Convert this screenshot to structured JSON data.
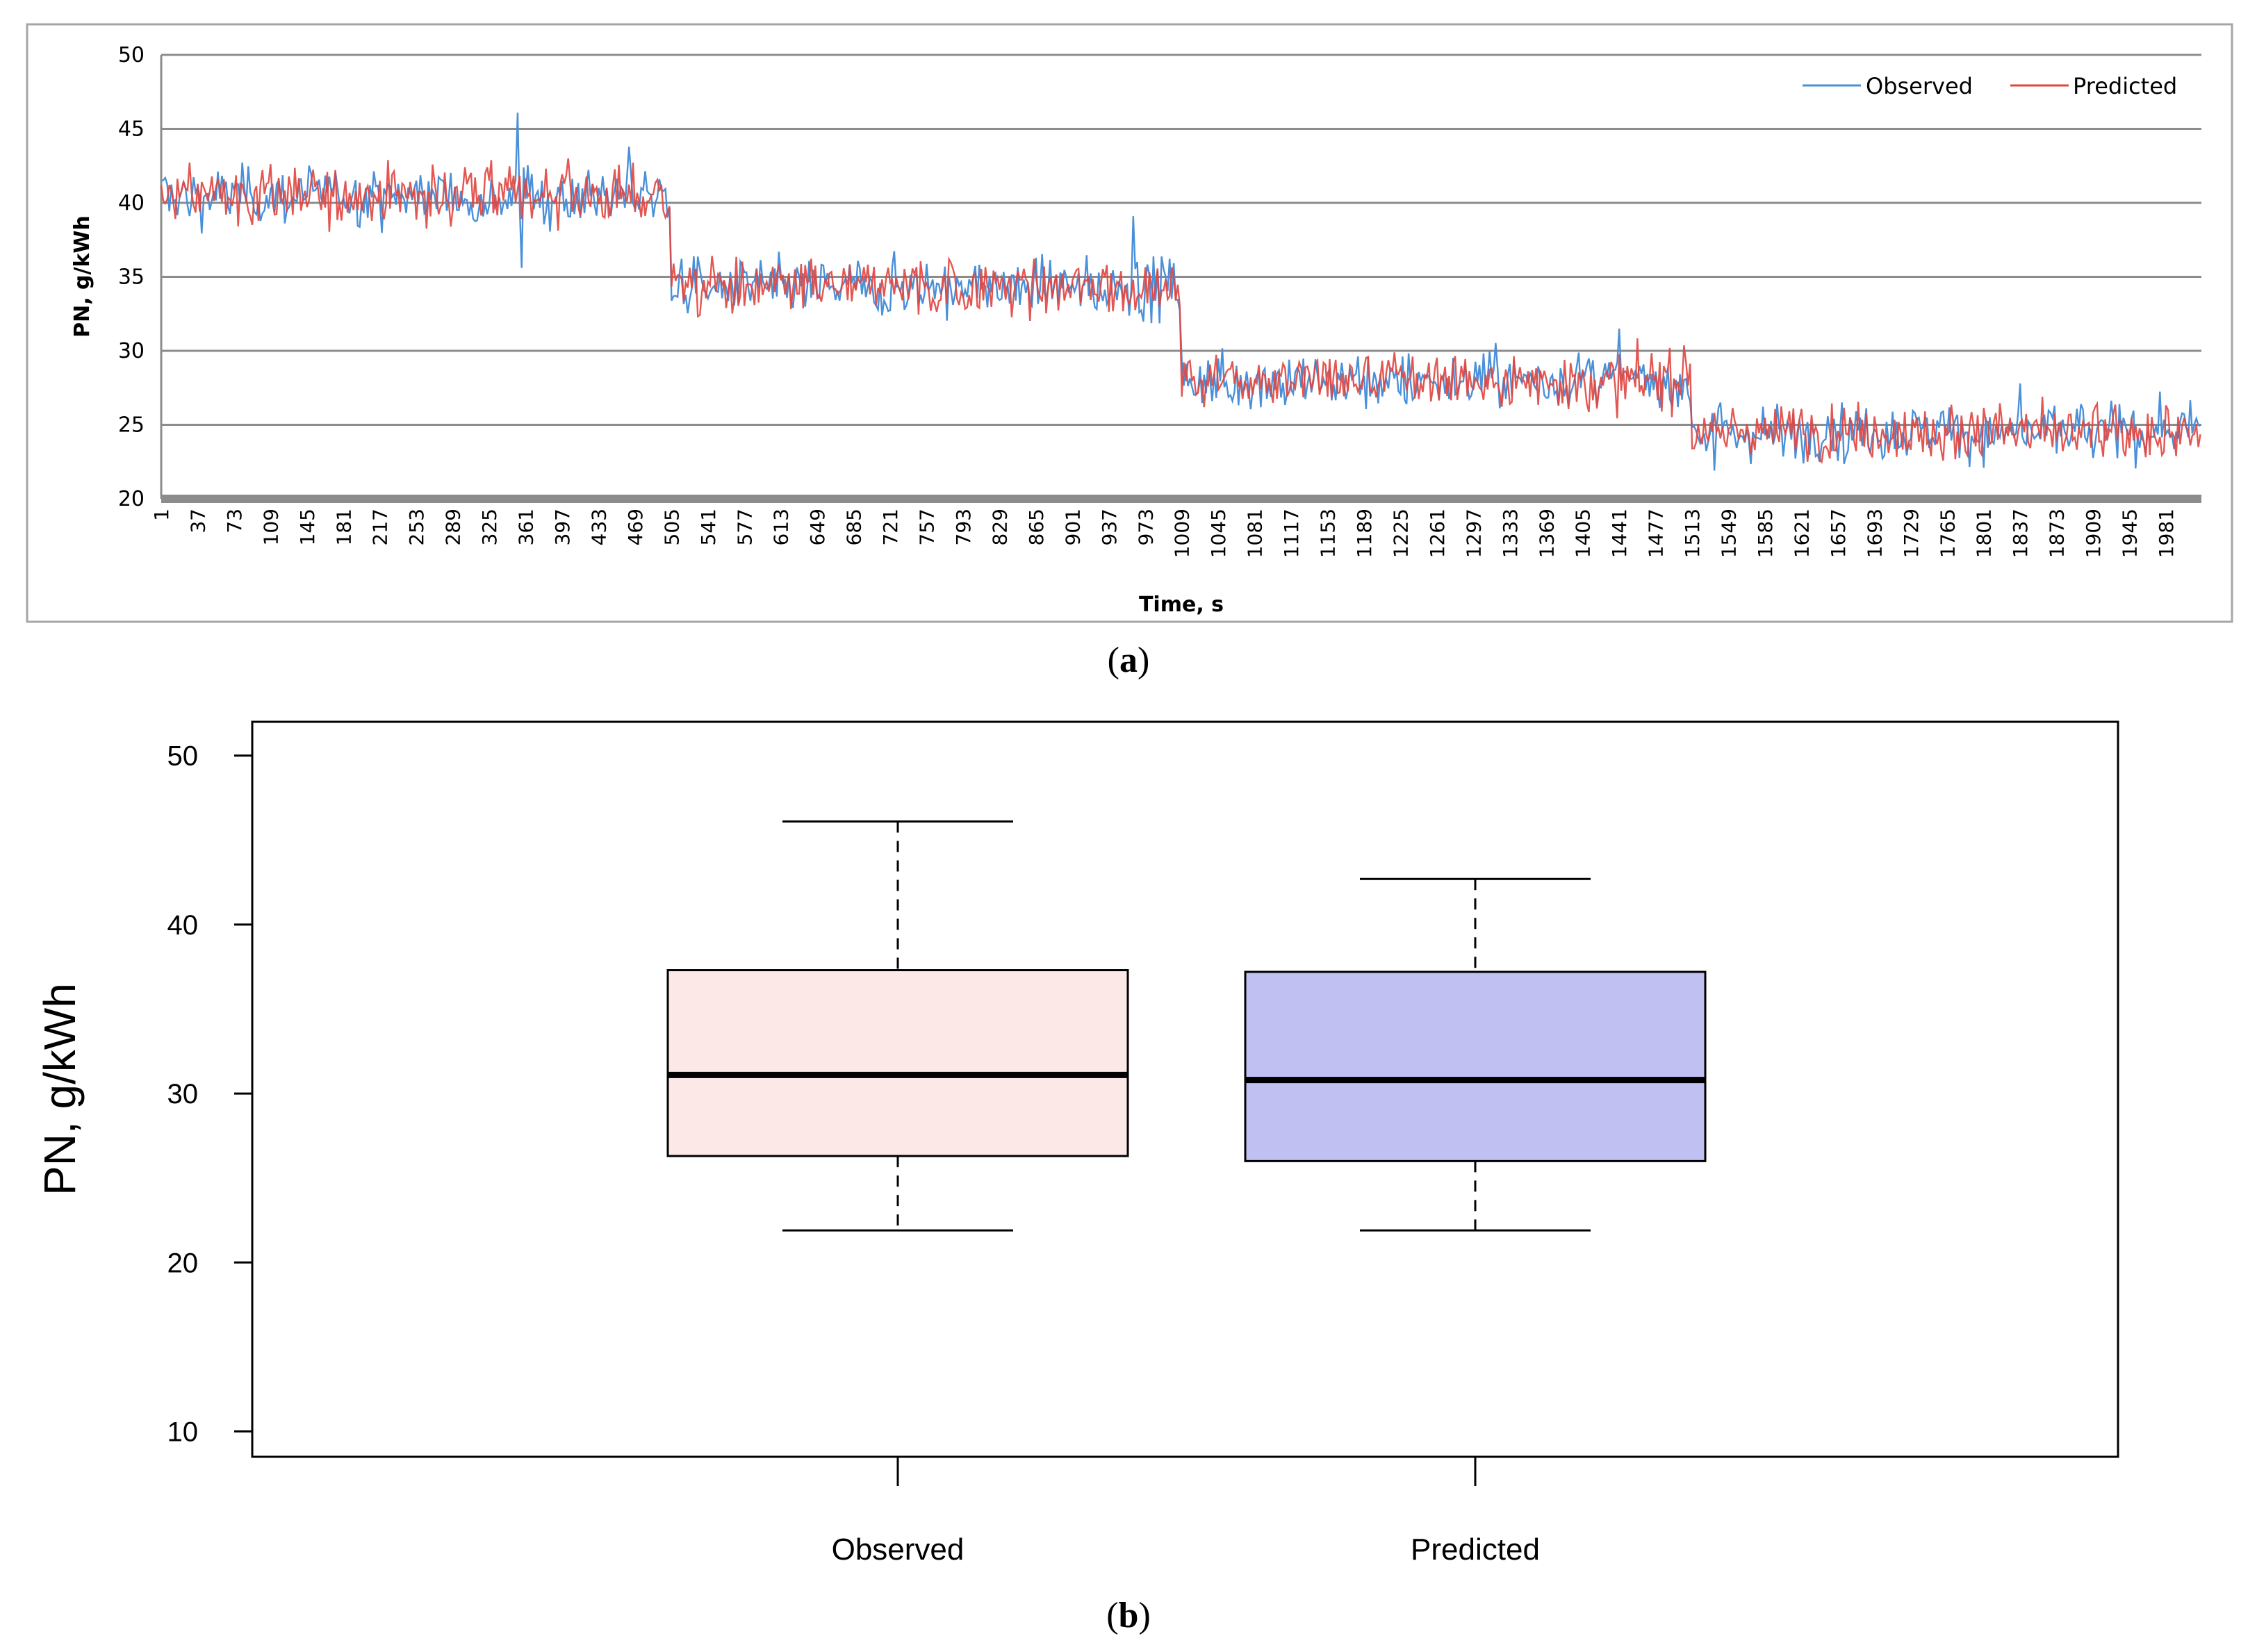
{
  "chart_data": [
    {
      "type": "line",
      "panel_label": "a",
      "xlabel": "Time, s",
      "ylabel": "PN, g/kWh",
      "ylim": [
        20,
        50
      ],
      "yticks": [
        20,
        25,
        30,
        35,
        40,
        45,
        50
      ],
      "xlim": [
        1,
        2016
      ],
      "xticks": [
        1,
        37,
        73,
        109,
        145,
        181,
        217,
        253,
        289,
        325,
        361,
        397,
        433,
        469,
        505,
        541,
        577,
        613,
        649,
        685,
        721,
        757,
        793,
        829,
        865,
        901,
        937,
        973,
        1009,
        1045,
        1081,
        1117,
        1153,
        1189,
        1225,
        1261,
        1297,
        1333,
        1369,
        1405,
        1441,
        1477,
        1513,
        1549,
        1585,
        1621,
        1657,
        1693,
        1729,
        1765,
        1801,
        1837,
        1873,
        1909,
        1945,
        1981
      ],
      "grid": true,
      "legend_position": "top-right",
      "segments": [
        {
          "x_start": 1,
          "x_end": 504,
          "level": 40.5
        },
        {
          "x_start": 505,
          "x_end": 1008,
          "level": 34.3
        },
        {
          "x_start": 1009,
          "x_end": 1512,
          "level": 28.0
        },
        {
          "x_start": 1513,
          "x_end": 2016,
          "level": 24.5
        }
      ],
      "series": [
        {
          "name": "Observed",
          "color": "#4a90d9",
          "range": [
            21.9,
            46.1
          ]
        },
        {
          "name": "Predicted",
          "color": "#e0453f",
          "range": [
            21.9,
            42.7
          ]
        }
      ]
    },
    {
      "type": "box",
      "panel_label": "b",
      "ylabel": "PN, g/kWh",
      "ylim": [
        8.5,
        52
      ],
      "yticks": [
        10,
        20,
        30,
        40,
        50
      ],
      "categories": [
        "Observed",
        "Predicted"
      ],
      "boxes": [
        {
          "name": "Observed",
          "min": 21.9,
          "q1": 26.3,
          "median": 31.1,
          "q3": 37.3,
          "max": 46.1,
          "color": "#fde8e8"
        },
        {
          "name": "Predicted",
          "min": 21.9,
          "q1": 26.0,
          "median": 30.8,
          "q3": 37.2,
          "max": 42.7,
          "color": "#c0c0f2"
        }
      ]
    }
  ]
}
